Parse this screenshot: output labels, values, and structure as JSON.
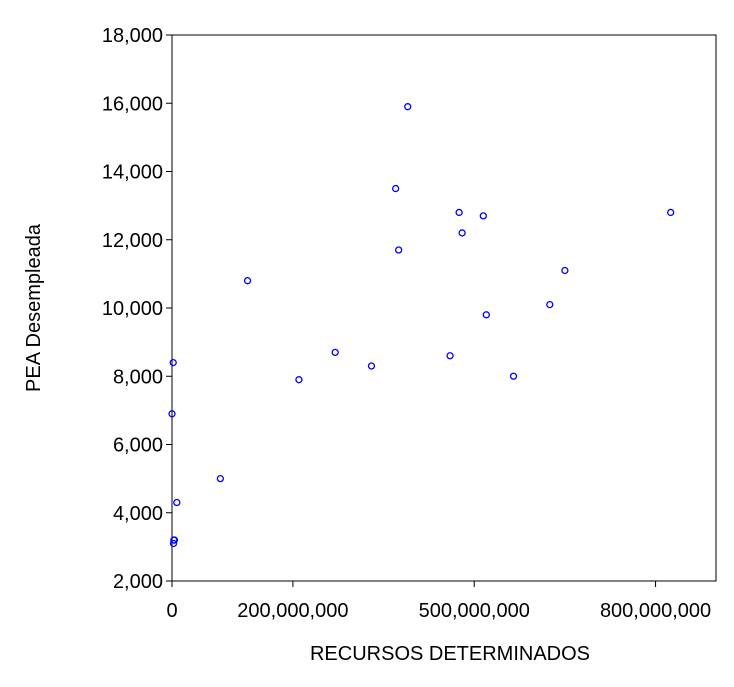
{
  "chart_data": {
    "type": "scatter",
    "title": "",
    "xlabel": "RECURSOS DETERMINADOS",
    "ylabel": "PEA Desempleada",
    "xlim": [
      0,
      900000000
    ],
    "ylim": [
      2000,
      18000
    ],
    "xticks": [
      0,
      200000000,
      500000000,
      800000000
    ],
    "xtick_labels": [
      "0",
      "200,000,000",
      "500,000,000",
      "800,000,000"
    ],
    "yticks": [
      2000,
      4000,
      6000,
      8000,
      10000,
      12000,
      14000,
      16000,
      18000
    ],
    "ytick_labels": [
      "2,000",
      "4,000",
      "6,000",
      "8,000",
      "10,000",
      "12,000",
      "14,000",
      "16,000",
      "18,000"
    ],
    "grid": false,
    "marker_color": "#0000ff",
    "points": [
      {
        "x": 2000000,
        "y": 8400
      },
      {
        "x": 0,
        "y": 6900
      },
      {
        "x": 8000000,
        "y": 4300
      },
      {
        "x": 3000000,
        "y": 3200
      },
      {
        "x": 2500000,
        "y": 3100
      },
      {
        "x": 4000000,
        "y": 3200
      },
      {
        "x": 80000000,
        "y": 5000
      },
      {
        "x": 125000000,
        "y": 10800
      },
      {
        "x": 210000000,
        "y": 7900
      },
      {
        "x": 270000000,
        "y": 8700
      },
      {
        "x": 330000000,
        "y": 8300
      },
      {
        "x": 370000000,
        "y": 13500
      },
      {
        "x": 375000000,
        "y": 11700
      },
      {
        "x": 390000000,
        "y": 15900
      },
      {
        "x": 460000000,
        "y": 8600
      },
      {
        "x": 475000000,
        "y": 12800
      },
      {
        "x": 480000000,
        "y": 12200
      },
      {
        "x": 515000000,
        "y": 12700
      },
      {
        "x": 520000000,
        "y": 9800
      },
      {
        "x": 565000000,
        "y": 8000
      },
      {
        "x": 625000000,
        "y": 10100
      },
      {
        "x": 650000000,
        "y": 11100
      },
      {
        "x": 825000000,
        "y": 12800
      }
    ]
  }
}
